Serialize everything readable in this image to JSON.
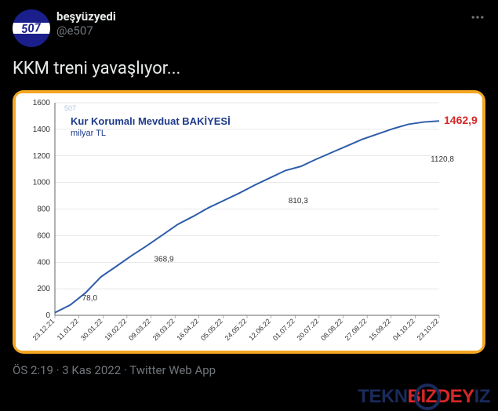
{
  "tweet": {
    "avatar_text": "507",
    "display_name": "beşyüzyedi",
    "handle": "@e507",
    "content": "KKM treni yavaşlıyor...",
    "timestamp": "ÖS 2:19 · 3 Kas 2022",
    "source": "Twitter Web App"
  },
  "chart": {
    "type": "line",
    "watermark": "507",
    "title_line1": "Kur Korumalı Mevduat BAKİYESİ",
    "title_line2": "milyar TL",
    "background_color": "#ffffff",
    "frame_color": "#f5a623",
    "line_color": "#2e5caa",
    "line_width": 2,
    "grid_color": "#d0d0d0",
    "title_color": "#1e3a8a",
    "final_color": "#d62728",
    "final_value": "1462,9",
    "ylim": [
      0,
      1600
    ],
    "ytick_step": 200,
    "y_ticks": [
      "0",
      "200",
      "400",
      "600",
      "800",
      "1000",
      "1200",
      "1400",
      "1600"
    ],
    "x_labels": [
      "23.12.21",
      "11.01.22",
      "30.01.22",
      "18.02.22",
      "09.03.22",
      "28.03.22",
      "16.04.22",
      "05.05.22",
      "24.05.22",
      "12.06.22",
      "01.07.22",
      "20.07.22",
      "08.08.22",
      "27.08.22",
      "15.09.22",
      "04.10.22",
      "23.10.22"
    ],
    "data_points": [
      20,
      78,
      170,
      290,
      369,
      450,
      525,
      605,
      685,
      745,
      810,
      865,
      920,
      980,
      1035,
      1090,
      1121,
      1175,
      1225,
      1275,
      1325,
      1365,
      1405,
      1438,
      1455,
      1463
    ],
    "annotations": [
      {
        "label": "78,0",
        "x_idx": 1,
        "y": 78,
        "anchor": "start"
      },
      {
        "label": "368,9",
        "x_idx": 4,
        "y": 369,
        "anchor": "start"
      },
      {
        "label": "810,3",
        "x_idx": 10,
        "y": 810,
        "anchor": "middle"
      },
      {
        "label": "1120,8",
        "x_idx": 16,
        "y": 1121,
        "anchor": "middle"
      }
    ],
    "axis_fontsize": 10,
    "title_fontsize": 13
  },
  "logo": {
    "part1": "TEKN",
    "part2": "B",
    "part3": "IZDEY",
    "part4": "IZ"
  }
}
